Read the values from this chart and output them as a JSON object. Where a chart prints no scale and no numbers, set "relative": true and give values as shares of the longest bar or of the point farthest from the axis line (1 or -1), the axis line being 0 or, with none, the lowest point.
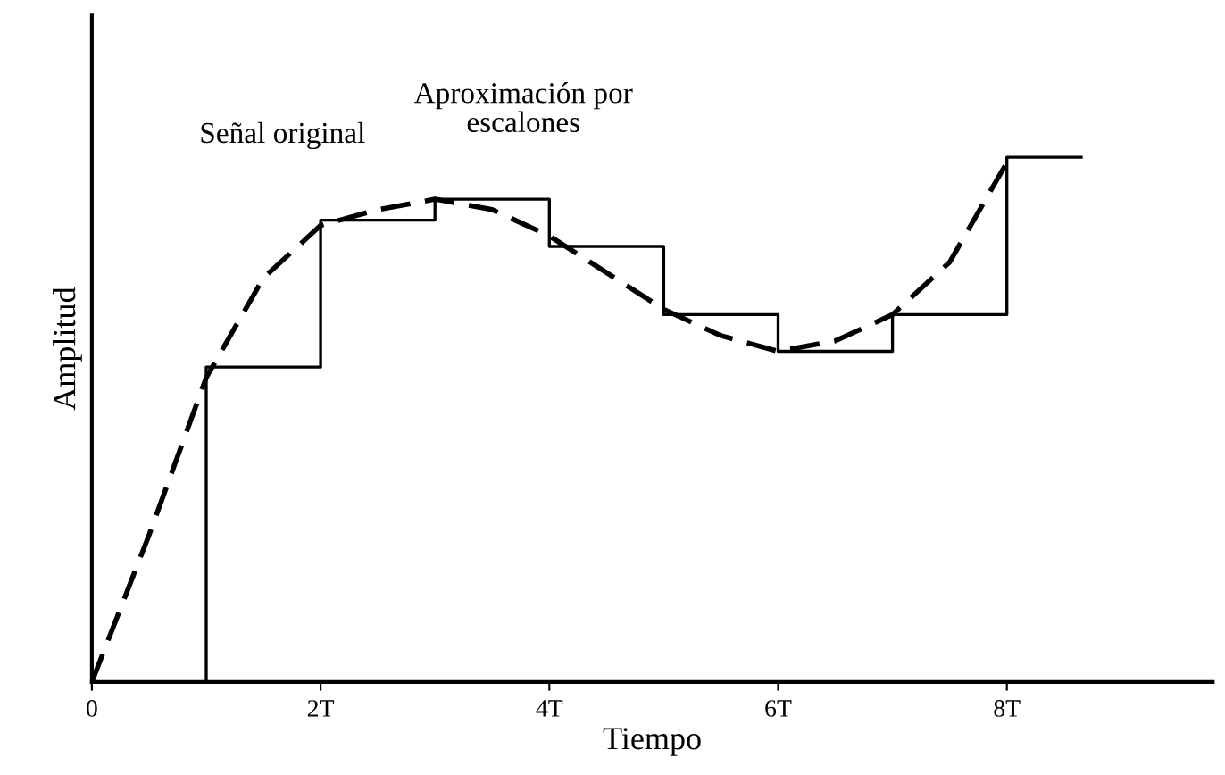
{
  "chart_data": {
    "type": "line",
    "relative": true,
    "xlabel": "Tiempo",
    "ylabel": "Amplitud",
    "xlim": [
      0,
      9.8
    ],
    "xticks": [
      0,
      {
        "value": 2,
        "label": "2T"
      },
      {
        "value": 4,
        "label": "4T"
      },
      {
        "value": 6,
        "label": "6T"
      },
      {
        "value": 8,
        "label": "8T"
      }
    ],
    "grid": false,
    "legend": false,
    "series": [
      {
        "name": "Señal original",
        "line_style": "dashed",
        "color": "#000000",
        "x": [
          0,
          0.5,
          1,
          1.5,
          2,
          2.5,
          3,
          3.5,
          4,
          4.5,
          5,
          5.5,
          6,
          6.5,
          7,
          7.5,
          8
        ],
        "values": [
          0,
          0.28,
          0.58,
          0.77,
          0.87,
          0.9,
          0.92,
          0.9,
          0.85,
          0.78,
          0.71,
          0.66,
          0.63,
          0.65,
          0.7,
          0.8,
          0.99
        ]
      },
      {
        "name": "Aproximación por escalones",
        "type": "step",
        "line_style": "solid",
        "color": "#000000",
        "x": [
          1,
          1,
          2,
          3,
          4,
          5,
          6,
          7,
          8,
          8.65
        ],
        "values": [
          0,
          0.6,
          0.88,
          0.92,
          0.83,
          0.7,
          0.63,
          0.7,
          1.0,
          1.0
        ]
      }
    ]
  }
}
